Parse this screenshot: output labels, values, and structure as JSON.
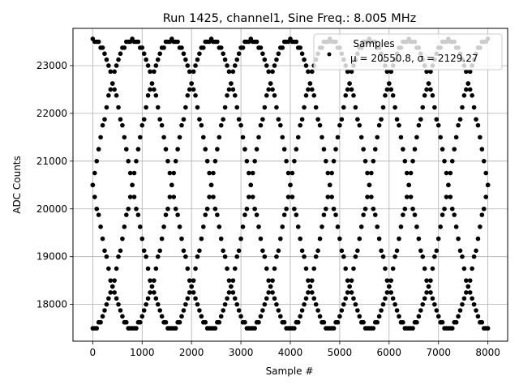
{
  "chart_data": {
    "type": "scatter",
    "title": "Run 1425, channel1, Sine Freq.: 8.005 MHz",
    "xlabel": "Sample #",
    "ylabel": "ADC Counts",
    "xlim": [
      -400,
      8400
    ],
    "ylim": [
      17230,
      23780
    ],
    "xticks": [
      0,
      1000,
      2000,
      3000,
      4000,
      5000,
      6000,
      7000,
      8000
    ],
    "yticks": [
      18000,
      19000,
      20000,
      21000,
      22000,
      23000
    ],
    "grid": true,
    "legend": {
      "placement": "top-right",
      "title": "Samples",
      "entry": "μ = 20550.8, σ = 2129.27"
    },
    "marker_color": "#000000",
    "series": [
      {
        "name": "Samples",
        "description_free": true,
        "x_start": 0,
        "x_end": 8000,
        "x_step": 40,
        "mean": 20550.8,
        "stdev": 2129.27,
        "signal": {
          "offset": 20530,
          "amplitude": 3040,
          "period_samples": 3200,
          "interleaved_phases_samples": [
            0,
            1600,
            800,
            2400
          ],
          "quantization": 125,
          "min": 17500,
          "max": 23560
        }
      }
    ]
  }
}
